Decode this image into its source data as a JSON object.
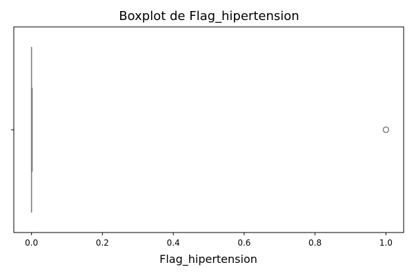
{
  "chart_data": {
    "type": "boxplot",
    "title": "Boxplot de Flag_hipertension",
    "xlabel": "Flag_hipertension",
    "ylabel": "",
    "xlim": [
      -0.05,
      1.05
    ],
    "xticks": [
      0.0,
      0.2,
      0.4,
      0.6,
      0.8,
      1.0
    ],
    "xtick_labels": [
      "0.0",
      "0.2",
      "0.4",
      "0.6",
      "0.8",
      "1.0"
    ],
    "orientation": "horizontal",
    "grid": false,
    "box": {
      "min": 0.0,
      "q1": 0.0,
      "median": 0.0,
      "q3": 0.0,
      "max": 0.0
    },
    "outliers": [
      1.0
    ],
    "colors": {
      "box_line": "#808080",
      "outlier_edge": "#808080",
      "axes": "#000000"
    }
  }
}
